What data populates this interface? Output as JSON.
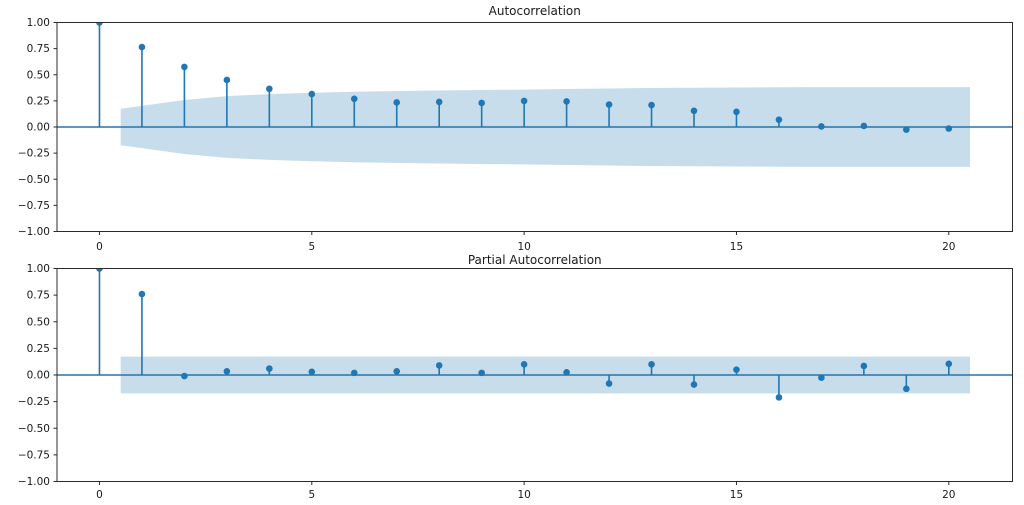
{
  "figure": {
    "background": "#ffffff",
    "accent_color": "#1f77b4",
    "band_color": "#1f77b4",
    "band_opacity": 0.25,
    "text_color": "#1a1a1a",
    "spine_color": "#2b2b2b"
  },
  "chart_data": [
    {
      "type": "stem",
      "title": "Autocorrelation",
      "x": [
        0,
        1,
        2,
        3,
        4,
        5,
        6,
        7,
        8,
        9,
        10,
        11,
        12,
        13,
        14,
        15,
        16,
        17,
        18,
        19,
        20
      ],
      "values": [
        1.0,
        0.765,
        0.575,
        0.45,
        0.365,
        0.315,
        0.27,
        0.235,
        0.24,
        0.23,
        0.25,
        0.245,
        0.215,
        0.21,
        0.155,
        0.145,
        0.07,
        0.005,
        0.01,
        -0.025,
        -0.015
      ],
      "confidence_band": {
        "x": [
          0.5,
          2,
          3,
          4,
          5,
          6,
          7,
          8,
          9,
          10,
          11,
          12,
          13,
          14,
          15,
          16,
          17,
          18,
          19,
          20.5
        ],
        "half_width": [
          0.175,
          0.258,
          0.295,
          0.315,
          0.328,
          0.337,
          0.344,
          0.349,
          0.354,
          0.358,
          0.364,
          0.369,
          0.373,
          0.376,
          0.378,
          0.38,
          0.381,
          0.381,
          0.382,
          0.382
        ]
      },
      "xlim": [
        -1.0,
        21.5
      ],
      "ylim": [
        -1.0,
        1.0
      ],
      "xtick_values": [
        0,
        5,
        10,
        15,
        20
      ],
      "xtick_labels": [
        "0",
        "5",
        "10",
        "15",
        "20"
      ],
      "ytick_values": [
        1,
        0.75,
        0.5,
        0.25,
        0,
        -0.25,
        -0.5,
        -0.75,
        -1
      ],
      "ytick_labels": [
        "1.00",
        "0.75",
        "0.50",
        "0.25",
        "0.00",
        "−0.25",
        "−0.50",
        "−0.75",
        "−1.00"
      ],
      "zero_line": true,
      "grid": false,
      "legend": null
    },
    {
      "type": "stem",
      "title": "Partial Autocorrelation",
      "x": [
        0,
        1,
        2,
        3,
        4,
        5,
        6,
        7,
        8,
        9,
        10,
        11,
        12,
        13,
        14,
        15,
        16,
        17,
        18,
        19,
        20
      ],
      "values": [
        1.0,
        0.76,
        -0.01,
        0.035,
        0.06,
        0.03,
        0.02,
        0.035,
        0.09,
        0.02,
        0.1,
        0.025,
        -0.08,
        0.1,
        -0.09,
        0.05,
        -0.21,
        -0.025,
        0.085,
        -0.13,
        0.105
      ],
      "confidence_band": {
        "x": [
          0.5,
          20.5
        ],
        "half_width": [
          0.172,
          0.172
        ]
      },
      "xlim": [
        -1.0,
        21.5
      ],
      "ylim": [
        -1.0,
        1.0
      ],
      "xtick_values": [
        0,
        5,
        10,
        15,
        20
      ],
      "xtick_labels": [
        "0",
        "5",
        "10",
        "15",
        "20"
      ],
      "ytick_values": [
        1,
        0.75,
        0.5,
        0.25,
        0,
        -0.25,
        -0.5,
        -0.75,
        -1
      ],
      "ytick_labels": [
        "1.00",
        "0.75",
        "0.50",
        "0.25",
        "0.00",
        "−0.25",
        "−0.50",
        "−0.75",
        "−1.00"
      ],
      "zero_line": true,
      "grid": false,
      "legend": null
    }
  ]
}
